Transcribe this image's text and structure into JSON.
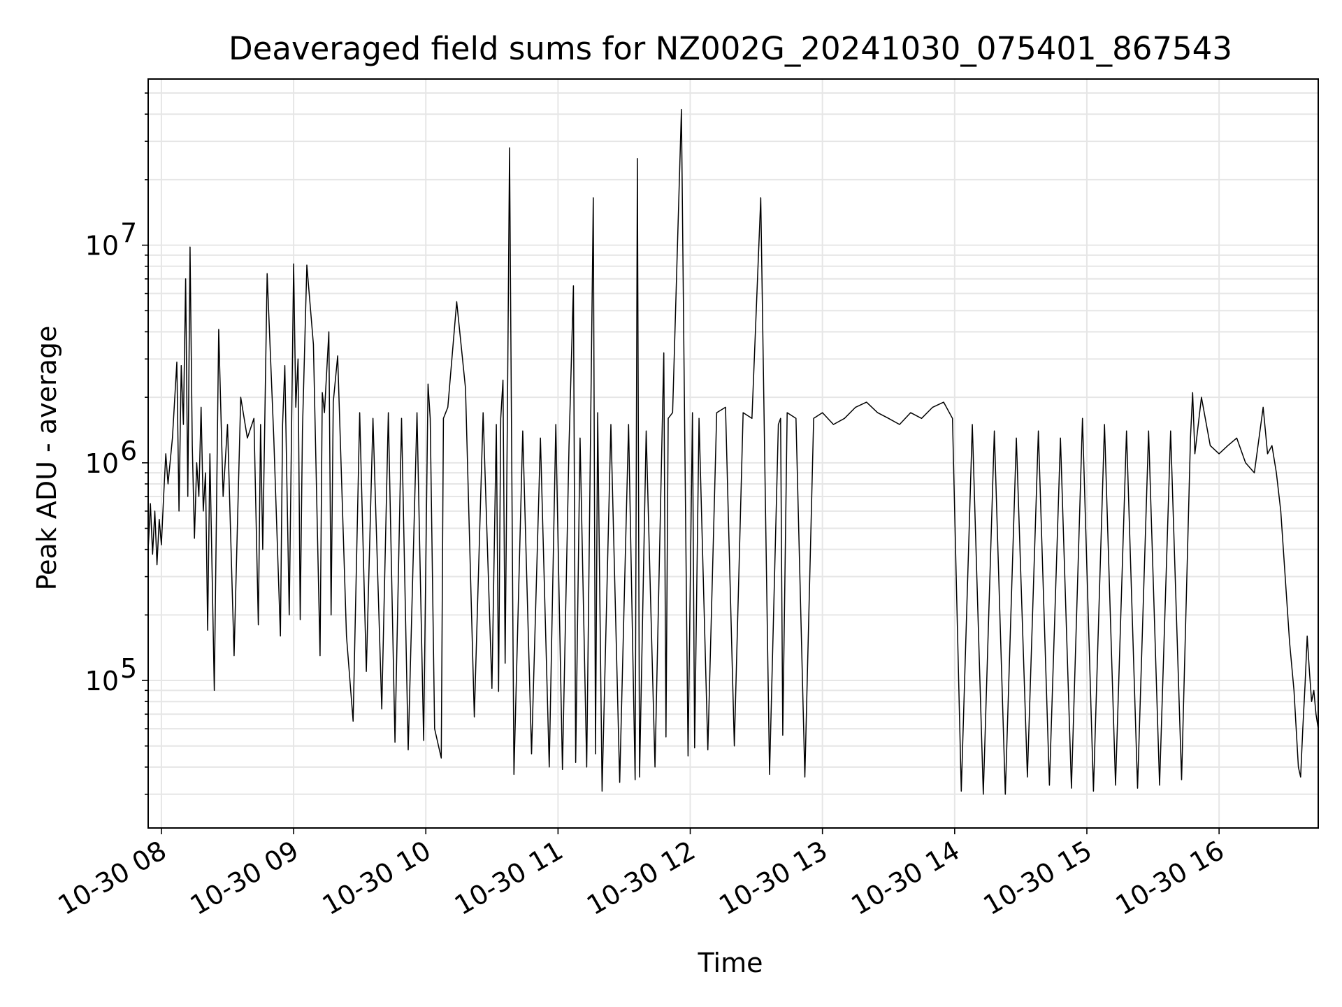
{
  "chart_data": {
    "type": "line",
    "title": "Deaveraged field sums for NZ002G_20241030_075401_867543",
    "xlabel": "Time",
    "ylabel": "Peak ADU - average",
    "yscale": "log",
    "ylim": [
      21000,
      58000000
    ],
    "xlim": [
      "2024-10-30 07:54",
      "2024-10-30 16:45"
    ],
    "x_ticks": [
      {
        "value": "2024-10-30 08:00",
        "label": "10-30 08"
      },
      {
        "value": "2024-10-30 09:00",
        "label": "10-30 09"
      },
      {
        "value": "2024-10-30 10:00",
        "label": "10-30 10"
      },
      {
        "value": "2024-10-30 11:00",
        "label": "10-30 11"
      },
      {
        "value": "2024-10-30 12:00",
        "label": "10-30 12"
      },
      {
        "value": "2024-10-30 13:00",
        "label": "10-30 13"
      },
      {
        "value": "2024-10-30 14:00",
        "label": "10-30 14"
      },
      {
        "value": "2024-10-30 15:00",
        "label": "10-30 15"
      },
      {
        "value": "2024-10-30 16:00",
        "label": "10-30 16"
      }
    ],
    "y_ticks": [
      {
        "value": 100000,
        "base": "10",
        "exp": "5"
      },
      {
        "value": 1000000,
        "base": "10",
        "exp": "6"
      },
      {
        "value": 10000000,
        "base": "10",
        "exp": "7"
      }
    ],
    "grid": true,
    "line_color": "#000000",
    "series": [
      {
        "x": [
          "2024-10-30 07:54",
          "2024-10-30 07:55",
          "2024-10-30 07:56",
          "2024-10-30 07:57",
          "2024-10-30 07:58",
          "2024-10-30 07:59",
          "2024-10-30 08:00",
          "2024-10-30 08:01",
          "2024-10-30 08:02",
          "2024-10-30 08:03",
          "2024-10-30 08:05",
          "2024-10-30 08:07",
          "2024-10-30 08:08",
          "2024-10-30 08:09",
          "2024-10-30 08:10",
          "2024-10-30 08:11",
          "2024-10-30 08:12",
          "2024-10-30 08:13",
          "2024-10-30 08:14",
          "2024-10-30 08:15",
          "2024-10-30 08:16",
          "2024-10-30 08:17",
          "2024-10-30 08:18",
          "2024-10-30 08:19",
          "2024-10-30 08:20",
          "2024-10-30 08:21",
          "2024-10-30 08:22",
          "2024-10-30 08:24",
          "2024-10-30 08:26",
          "2024-10-30 08:28",
          "2024-10-30 08:30",
          "2024-10-30 08:33",
          "2024-10-30 08:36",
          "2024-10-30 08:39",
          "2024-10-30 08:42",
          "2024-10-30 08:44",
          "2024-10-30 08:45",
          "2024-10-30 08:46",
          "2024-10-30 08:48",
          "2024-10-30 08:51",
          "2024-10-30 08:54",
          "2024-10-30 08:55",
          "2024-10-30 08:56",
          "2024-10-30 08:58",
          "2024-10-30 09:00",
          "2024-10-30 09:01",
          "2024-10-30 09:02",
          "2024-10-30 09:03",
          "2024-10-30 09:04",
          "2024-10-30 09:06",
          "2024-10-30 09:09",
          "2024-10-30 09:12",
          "2024-10-30 09:13",
          "2024-10-30 09:14",
          "2024-10-30 09:16",
          "2024-10-30 09:17",
          "2024-10-30 09:18",
          "2024-10-30 09:20",
          "2024-10-30 09:24",
          "2024-10-30 09:27",
          "2024-10-30 09:30",
          "2024-10-30 09:33",
          "2024-10-30 09:36",
          "2024-10-30 09:40",
          "2024-10-30 09:43",
          "2024-10-30 09:46",
          "2024-10-30 09:49",
          "2024-10-30 09:52",
          "2024-10-30 09:56",
          "2024-10-30 09:59",
          "2024-10-30 10:01",
          "2024-10-30 10:02",
          "2024-10-30 10:04",
          "2024-10-30 10:07",
          "2024-10-30 10:08",
          "2024-10-30 10:10",
          "2024-10-30 10:14",
          "2024-10-30 10:18",
          "2024-10-30 10:22",
          "2024-10-30 10:26",
          "2024-10-30 10:30",
          "2024-10-30 10:32",
          "2024-10-30 10:33",
          "2024-10-30 10:34",
          "2024-10-30 10:35",
          "2024-10-30 10:36",
          "2024-10-30 10:37",
          "2024-10-30 10:38",
          "2024-10-30 10:40",
          "2024-10-30 10:44",
          "2024-10-30 10:48",
          "2024-10-30 10:52",
          "2024-10-30 10:56",
          "2024-10-30 10:59",
          "2024-10-30 11:02",
          "2024-10-30 11:05",
          "2024-10-30 11:07",
          "2024-10-30 11:08",
          "2024-10-30 11:10",
          "2024-10-30 11:13",
          "2024-10-30 11:16",
          "2024-10-30 11:17",
          "2024-10-30 11:18",
          "2024-10-30 11:20",
          "2024-10-30 11:24",
          "2024-10-30 11:28",
          "2024-10-30 11:32",
          "2024-10-30 11:35",
          "2024-10-30 11:36",
          "2024-10-30 11:37",
          "2024-10-30 11:40",
          "2024-10-30 11:44",
          "2024-10-30 11:48",
          "2024-10-30 11:49",
          "2024-10-30 11:50",
          "2024-10-30 11:52",
          "2024-10-30 11:56",
          "2024-10-30 11:59",
          "2024-10-30 12:01",
          "2024-10-30 12:02",
          "2024-10-30 12:04",
          "2024-10-30 12:08",
          "2024-10-30 12:12",
          "2024-10-30 12:16",
          "2024-10-30 12:20",
          "2024-10-30 12:24",
          "2024-10-30 12:28",
          "2024-10-30 12:32",
          "2024-10-30 12:36",
          "2024-10-30 12:40",
          "2024-10-30 12:41",
          "2024-10-30 12:42",
          "2024-10-30 12:44",
          "2024-10-30 12:48",
          "2024-10-30 12:52",
          "2024-10-30 12:56",
          "2024-10-30 13:00",
          "2024-10-30 13:05",
          "2024-10-30 13:10",
          "2024-10-30 13:15",
          "2024-10-30 13:20",
          "2024-10-30 13:25",
          "2024-10-30 13:30",
          "2024-10-30 13:35",
          "2024-10-30 13:40",
          "2024-10-30 13:45",
          "2024-10-30 13:50",
          "2024-10-30 13:55",
          "2024-10-30 13:59",
          "2024-10-30 14:03",
          "2024-10-30 14:08",
          "2024-10-30 14:13",
          "2024-10-30 14:18",
          "2024-10-30 14:23",
          "2024-10-30 14:28",
          "2024-10-30 14:33",
          "2024-10-30 14:38",
          "2024-10-30 14:43",
          "2024-10-30 14:48",
          "2024-10-30 14:53",
          "2024-10-30 14:58",
          "2024-10-30 15:03",
          "2024-10-30 15:08",
          "2024-10-30 15:13",
          "2024-10-30 15:18",
          "2024-10-30 15:23",
          "2024-10-30 15:28",
          "2024-10-30 15:33",
          "2024-10-30 15:38",
          "2024-10-30 15:43",
          "2024-10-30 15:47",
          "2024-10-30 15:48",
          "2024-10-30 15:49",
          "2024-10-30 15:52",
          "2024-10-30 15:56",
          "2024-10-30 16:00",
          "2024-10-30 16:04",
          "2024-10-30 16:08",
          "2024-10-30 16:12",
          "2024-10-30 16:16",
          "2024-10-30 16:20",
          "2024-10-30 16:22",
          "2024-10-30 16:24",
          "2024-10-30 16:26",
          "2024-10-30 16:28",
          "2024-10-30 16:30",
          "2024-10-30 16:32",
          "2024-10-30 16:34",
          "2024-10-30 16:36",
          "2024-10-30 16:37",
          "2024-10-30 16:38",
          "2024-10-30 16:39",
          "2024-10-30 16:40",
          "2024-10-30 16:41",
          "2024-10-30 16:42",
          "2024-10-30 16:43",
          "2024-10-30 16:44",
          "2024-10-30 16:45"
        ],
        "y": [
          400000,
          650000,
          380000,
          600000,
          340000,
          550000,
          420000,
          700000,
          1100000,
          800000,
          1300000,
          2900000,
          600000,
          2800000,
          1500000,
          7000000,
          700000,
          9800000,
          1200000,
          450000,
          1000000,
          700000,
          1800000,
          600000,
          900000,
          170000,
          1100000,
          90000,
          4100000,
          700000,
          1500000,
          130000,
          2000000,
          1300000,
          1600000,
          180000,
          1500000,
          400000,
          7400000,
          1300000,
          160000,
          1500000,
          2800000,
          200000,
          8200000,
          1800000,
          3000000,
          190000,
          1400000,
          8100000,
          3500000,
          130000,
          2100000,
          1700000,
          4000000,
          200000,
          1900000,
          3100000,
          160000,
          65000,
          1700000,
          110000,
          1600000,
          74000,
          1700000,
          52000,
          1600000,
          48000,
          1700000,
          53000,
          2300000,
          1600000,
          60000,
          44000,
          1600000,
          1800000,
          5500000,
          2200000,
          68000,
          1700000,
          92000,
          1500000,
          89000,
          1600000,
          2400000,
          120000,
          1600000,
          28000000,
          37000,
          1400000,
          46000,
          1300000,
          40000,
          1500000,
          39000,
          1200000,
          6500000,
          42000,
          1300000,
          40000,
          16500000,
          46000,
          1700000,
          31000,
          1500000,
          34000,
          1500000,
          35000,
          25000000,
          36000,
          1400000,
          40000,
          3200000,
          55000,
          1600000,
          1700000,
          42000000,
          45000,
          1700000,
          49000,
          1600000,
          48000,
          1700000,
          1800000,
          50000,
          1700000,
          1600000,
          16500000,
          37000,
          1500000,
          1600000,
          56000,
          1700000,
          1600000,
          36000,
          1600000,
          1700000,
          1500000,
          1600000,
          1800000,
          1900000,
          1700000,
          1600000,
          1500000,
          1700000,
          1600000,
          1800000,
          1900000,
          1600000,
          31000,
          1500000,
          30000,
          1400000,
          30000,
          1300000,
          36000,
          1400000,
          33000,
          1300000,
          32000,
          1600000,
          31000,
          1500000,
          33000,
          1400000,
          32000,
          1400000,
          33000,
          1400000,
          35000,
          1300000,
          2100000,
          1100000,
          2000000,
          1200000,
          1100000,
          1200000,
          1300000,
          1000000,
          900000,
          1800000,
          1100000,
          1200000,
          900000,
          600000,
          300000,
          150000,
          90000,
          40000,
          36000,
          60000,
          95000,
          160000,
          110000,
          80000,
          90000,
          70000,
          60000
        ]
      }
    ]
  }
}
